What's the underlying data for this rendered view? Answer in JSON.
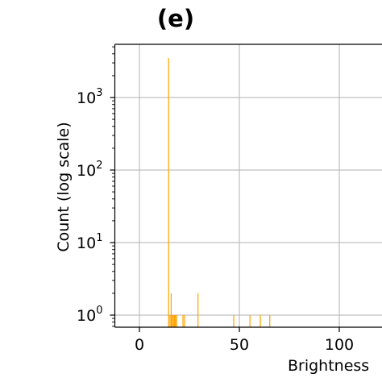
{
  "chart_data": {
    "type": "histogram",
    "title": "(e)",
    "xlabel": "Brightness",
    "ylabel": "Count (log scale)",
    "yscale": "log",
    "grid": true,
    "bar_color": "#ffa500",
    "xlim": [
      -13,
      130
    ],
    "ylim": [
      0.65,
      4500
    ],
    "xticks": [
      0,
      50,
      100
    ],
    "yticks": [
      {
        "base": "10",
        "exp": "0",
        "value": 1
      },
      {
        "base": "10",
        "exp": "1",
        "value": 10
      },
      {
        "base": "10",
        "exp": "2",
        "value": 100
      },
      {
        "base": "10",
        "exp": "3",
        "value": 1000
      }
    ],
    "bin_width": 0.5,
    "bins": [
      {
        "x": 14.6,
        "count": 3500
      },
      {
        "x": 15.3,
        "count": 1
      },
      {
        "x": 15.9,
        "count": 2
      },
      {
        "x": 16.4,
        "count": 1
      },
      {
        "x": 17.0,
        "count": 1
      },
      {
        "x": 17.5,
        "count": 1
      },
      {
        "x": 18.0,
        "count": 1
      },
      {
        "x": 18.6,
        "count": 1
      },
      {
        "x": 21.8,
        "count": 1
      },
      {
        "x": 22.6,
        "count": 1
      },
      {
        "x": 29.3,
        "count": 2
      },
      {
        "x": 47.2,
        "count": 1
      },
      {
        "x": 55.3,
        "count": 1
      },
      {
        "x": 60.5,
        "count": 1
      },
      {
        "x": 65.2,
        "count": 1
      }
    ]
  }
}
